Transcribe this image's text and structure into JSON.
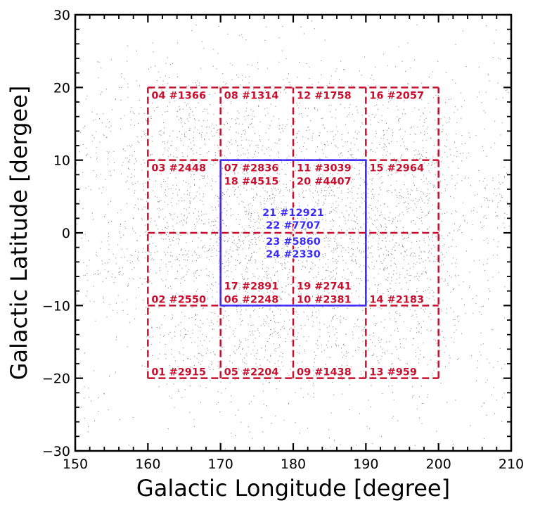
{
  "chart_data": {
    "type": "scatter",
    "xlabel": "Galactic Longitude [degree]",
    "ylabel": "Galactic Latitude [dergee]",
    "xlim": [
      150,
      210
    ],
    "ylim": [
      -30,
      30
    ],
    "xticks": [
      150,
      160,
      170,
      180,
      190,
      200,
      210
    ],
    "yticks": [
      -30,
      -20,
      -10,
      0,
      10,
      20,
      30
    ],
    "xtick_labels": [
      "150",
      "160",
      "170",
      "180",
      "190",
      "200",
      "210"
    ],
    "ytick_labels": [
      "−30",
      "−20",
      "−10",
      "0",
      "10",
      "20",
      "30"
    ],
    "grid": false,
    "point_color": "#8c8c8c",
    "colors": {
      "red_fields": "#c8102e",
      "blue_fields": "#3a2cff"
    },
    "point_clusters": [
      {
        "l": 165,
        "b": 15,
        "r": 4,
        "w": 1.6
      },
      {
        "l": 174,
        "b": 15,
        "r": 4,
        "w": 1.4
      },
      {
        "l": 185,
        "b": 14,
        "r": 4,
        "w": 1.4
      },
      {
        "l": 196,
        "b": 14,
        "r": 4,
        "w": 1.5
      },
      {
        "l": 163,
        "b": 6,
        "r": 4,
        "w": 1.7
      },
      {
        "l": 175,
        "b": 4,
        "r": 5,
        "w": 2.2
      },
      {
        "l": 186,
        "b": 3,
        "r": 5,
        "w": 2.3
      },
      {
        "l": 196,
        "b": 5,
        "r": 4,
        "w": 1.8
      },
      {
        "l": 156,
        "b": -4,
        "r": 3,
        "w": 1.2
      },
      {
        "l": 166,
        "b": -2,
        "r": 4,
        "w": 1.7
      },
      {
        "l": 176,
        "b": -3,
        "r": 4,
        "w": 2.0
      },
      {
        "l": 187,
        "b": -3,
        "r": 4,
        "w": 2.0
      },
      {
        "l": 197,
        "b": -4,
        "r": 4,
        "w": 1.8
      },
      {
        "l": 166,
        "b": -14,
        "r": 4,
        "w": 1.5
      },
      {
        "l": 175,
        "b": -13,
        "r": 4,
        "w": 1.6
      },
      {
        "l": 185,
        "b": -13,
        "r": 4,
        "w": 1.5
      },
      {
        "l": 196,
        "b": -14,
        "r": 4,
        "w": 1.4
      },
      {
        "l": 207,
        "b": 4,
        "r": 3,
        "w": 1.0
      },
      {
        "l": 155,
        "b": 12,
        "r": 3,
        "w": 0.9
      }
    ],
    "fields": [
      {
        "id": "01",
        "count": 2915,
        "label": "01 #2915",
        "color": "red",
        "l": [
          160,
          170
        ],
        "b": [
          -20,
          -10
        ],
        "anchor": "bottom"
      },
      {
        "id": "02",
        "count": 2550,
        "label": "02 #2550",
        "color": "red",
        "l": [
          160,
          170
        ],
        "b": [
          -10,
          0
        ],
        "anchor": "bottom"
      },
      {
        "id": "03",
        "count": 2448,
        "label": "03 #2448",
        "color": "red",
        "l": [
          160,
          170
        ],
        "b": [
          0,
          10
        ],
        "anchor": "top"
      },
      {
        "id": "04",
        "count": 1366,
        "label": "04 #1366",
        "color": "red",
        "l": [
          160,
          170
        ],
        "b": [
          10,
          20
        ],
        "anchor": "top"
      },
      {
        "id": "05",
        "count": 2204,
        "label": "05 #2204",
        "color": "red",
        "l": [
          170,
          180
        ],
        "b": [
          -20,
          -10
        ],
        "anchor": "bottom"
      },
      {
        "id": "06",
        "count": 2248,
        "label": "06 #2248",
        "color": "red",
        "l": [
          170,
          180
        ],
        "b": [
          -10,
          0
        ],
        "anchor": "bottom"
      },
      {
        "id": "07",
        "count": 2836,
        "label": "07 #2836",
        "color": "red",
        "l": [
          170,
          180
        ],
        "b": [
          0,
          10
        ],
        "anchor": "top"
      },
      {
        "id": "08",
        "count": 1314,
        "label": "08 #1314",
        "color": "red",
        "l": [
          170,
          180
        ],
        "b": [
          10,
          20
        ],
        "anchor": "top"
      },
      {
        "id": "09",
        "count": 1438,
        "label": "09 #1438",
        "color": "red",
        "l": [
          180,
          190
        ],
        "b": [
          -20,
          -10
        ],
        "anchor": "bottom"
      },
      {
        "id": "10",
        "count": 2381,
        "label": "10 #2381",
        "color": "red",
        "l": [
          180,
          190
        ],
        "b": [
          -10,
          0
        ],
        "anchor": "bottom"
      },
      {
        "id": "11",
        "count": 3039,
        "label": "11 #3039",
        "color": "red",
        "l": [
          180,
          190
        ],
        "b": [
          0,
          10
        ],
        "anchor": "top"
      },
      {
        "id": "12",
        "count": 1758,
        "label": "12 #1758",
        "color": "red",
        "l": [
          180,
          190
        ],
        "b": [
          10,
          20
        ],
        "anchor": "top"
      },
      {
        "id": "13",
        "count": 959,
        "label": "13 #959",
        "color": "red",
        "l": [
          190,
          200
        ],
        "b": [
          -20,
          -10
        ],
        "anchor": "bottom"
      },
      {
        "id": "14",
        "count": 2183,
        "label": "14 #2183",
        "color": "red",
        "l": [
          190,
          200
        ],
        "b": [
          -10,
          0
        ],
        "anchor": "bottom"
      },
      {
        "id": "15",
        "count": 2964,
        "label": "15 #2964",
        "color": "red",
        "l": [
          190,
          200
        ],
        "b": [
          0,
          10
        ],
        "anchor": "top"
      },
      {
        "id": "16",
        "count": 2057,
        "label": "16 #2057",
        "color": "red",
        "l": [
          190,
          200
        ],
        "b": [
          10,
          20
        ],
        "anchor": "top"
      },
      {
        "id": "17",
        "count": 2891,
        "label": "17 #2891",
        "color": "red",
        "l": [
          170,
          180
        ],
        "b": [
          -10,
          0
        ],
        "anchor": "bottom2"
      },
      {
        "id": "18",
        "count": 4515,
        "label": "18 #4515",
        "color": "red",
        "l": [
          170,
          180
        ],
        "b": [
          0,
          10
        ],
        "anchor": "top2"
      },
      {
        "id": "19",
        "count": 2741,
        "label": "19 #2741",
        "color": "red",
        "l": [
          180,
          190
        ],
        "b": [
          -10,
          0
        ],
        "anchor": "bottom2"
      },
      {
        "id": "20",
        "count": 4407,
        "label": "20 #4407",
        "color": "red",
        "l": [
          180,
          190
        ],
        "b": [
          0,
          10
        ],
        "anchor": "top2"
      },
      {
        "id": "21",
        "count": 12921,
        "label": "21 #12921",
        "color": "blue",
        "l": [
          170,
          190
        ],
        "b": [
          -10,
          10
        ],
        "anchor": "center1"
      },
      {
        "id": "22",
        "count": 7707,
        "label": "22 #7707",
        "color": "blue",
        "l": [
          170,
          190
        ],
        "b": [
          -10,
          10
        ],
        "anchor": "center2"
      },
      {
        "id": "23",
        "count": 5860,
        "label": "23 #5860",
        "color": "blue",
        "l": [
          170,
          190
        ],
        "b": [
          -10,
          10
        ],
        "anchor": "center3"
      },
      {
        "id": "24",
        "count": 2330,
        "label": "24 #2330",
        "color": "blue",
        "l": [
          170,
          190
        ],
        "b": [
          -10,
          10
        ],
        "anchor": "center4"
      }
    ],
    "dashed_regions": [
      {
        "l": [
          160,
          200
        ],
        "b": [
          -20,
          20
        ],
        "color": "red",
        "style": "dashed"
      },
      {
        "l": [
          170,
          190
        ],
        "b": [
          -10,
          10
        ],
        "color": "blue",
        "style": "solid"
      }
    ]
  }
}
